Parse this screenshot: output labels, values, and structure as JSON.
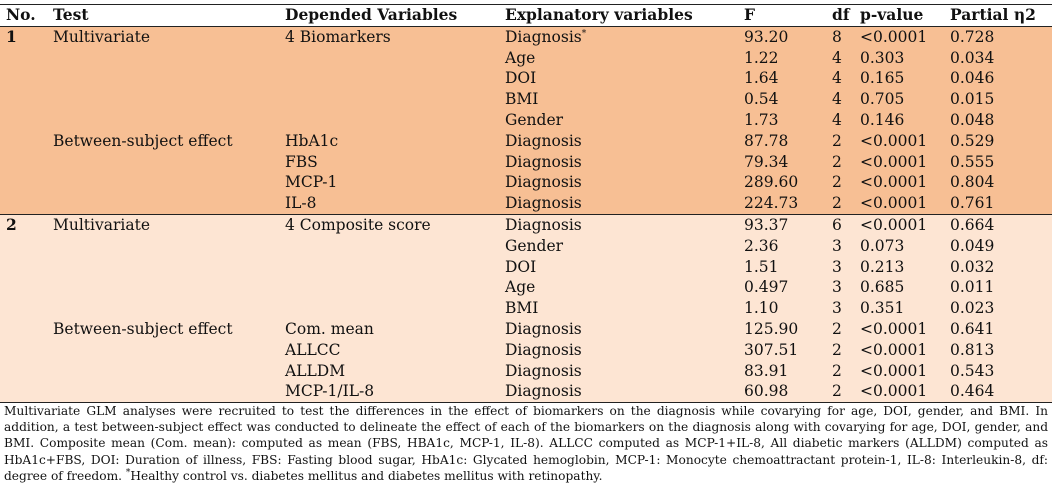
{
  "columns": [
    "No.",
    "Test",
    "Depended Variables",
    "Explanatory variables",
    "F",
    "df",
    "p-value",
    "Partial η2"
  ],
  "groups": [
    {
      "no": "1",
      "rows": [
        {
          "test": "Multivariate",
          "dep": "4 Biomarkers",
          "expl": "Diagnosis",
          "sup": "*",
          "F": "93.20",
          "df": "8",
          "p": "<0.0001",
          "eta": "0.728"
        },
        {
          "test": "",
          "dep": "",
          "expl": "Age",
          "F": "1.22",
          "df": "4",
          "p": "0.303",
          "eta": "0.034"
        },
        {
          "test": "",
          "dep": "",
          "expl": "DOI",
          "F": "1.64",
          "df": "4",
          "p": "0.165",
          "eta": "0.046"
        },
        {
          "test": "",
          "dep": "",
          "expl": "BMI",
          "F": "0.54",
          "df": "4",
          "p": "0.705",
          "eta": "0.015"
        },
        {
          "test": "",
          "dep": "",
          "expl": "Gender",
          "F": "1.73",
          "df": "4",
          "p": "0.146",
          "eta": "0.048"
        },
        {
          "test": "Between-subject effect",
          "dep": "HbA1c",
          "expl": "Diagnosis",
          "F": "87.78",
          "df": "2",
          "p": "<0.0001",
          "eta": "0.529"
        },
        {
          "test": "",
          "dep": "FBS",
          "expl": "Diagnosis",
          "F": "79.34",
          "df": "2",
          "p": "<0.0001",
          "eta": "0.555"
        },
        {
          "test": "",
          "dep": "MCP-1",
          "expl": "Diagnosis",
          "F": "289.60",
          "df": "2",
          "p": "<0.0001",
          "eta": "0.804"
        },
        {
          "test": "",
          "dep": "IL-8",
          "expl": "Diagnosis",
          "F": "224.73",
          "df": "2",
          "p": "<0.0001",
          "eta": "0.761"
        }
      ]
    },
    {
      "no": "2",
      "rows": [
        {
          "test": "Multivariate",
          "dep": "4 Composite score",
          "expl": "Diagnosis",
          "F": "93.37",
          "df": "6",
          "p": "<0.0001",
          "eta": "0.664"
        },
        {
          "test": "",
          "dep": "",
          "expl": "Gender",
          "F": "2.36",
          "df": "3",
          "p": "0.073",
          "eta": "0.049"
        },
        {
          "test": "",
          "dep": "",
          "expl": "DOI",
          "F": "1.51",
          "df": "3",
          "p": "0.213",
          "eta": "0.032"
        },
        {
          "test": "",
          "dep": "",
          "expl": "Age",
          "F": "0.497",
          "df": "3",
          "p": "0.685",
          "eta": "0.011"
        },
        {
          "test": "",
          "dep": "",
          "expl": "BMI",
          "F": "1.10",
          "df": "3",
          "p": "0.351",
          "eta": "0.023"
        },
        {
          "test": "Between-subject effect",
          "dep": "Com. mean",
          "expl": "Diagnosis",
          "F": "125.90",
          "df": "2",
          "p": "<0.0001",
          "eta": "0.641"
        },
        {
          "test": "",
          "dep": "ALLCC",
          "expl": "Diagnosis",
          "F": "307.51",
          "df": "2",
          "p": "<0.0001",
          "eta": "0.813"
        },
        {
          "test": "",
          "dep": "ALLDM",
          "expl": "Diagnosis",
          "F": "83.91",
          "df": "2",
          "p": "<0.0001",
          "eta": "0.543"
        },
        {
          "test": "",
          "dep": "MCP-1/IL-8",
          "expl": "Diagnosis",
          "F": "60.98",
          "df": "2",
          "p": "<0.0001",
          "eta": "0.464"
        }
      ]
    }
  ],
  "footnote": {
    "main": "Multivariate GLM analyses were recruited to test the differences in the effect of biomarkers on the diagnosis while covarying for age, DOI, gender, and BMI. In addition, a test between-subject effect was conducted to delineate the effect of each of the biomarkers on the diagnosis along with covarying for age, DOI, gender, and BMI. Composite mean (Com. mean): computed as mean (FBS, HBA1c, MCP-1, IL-8). ALLCC computed as MCP-1+IL-8, All diabetic markers (ALLDM) computed as HbA1c+FBS, DOI: Duration of illness, FBS: Fasting blood sugar, HbA1c: Glycated hemoglobin, MCP-1: Monocyte chemoattractant protein-1, IL-8: Interleukin-8, df: degree of freedom. ",
    "star": "*",
    "tail": "Healthy control vs. diabetes mellitus and diabetes mellitus with retinopathy."
  },
  "colors": {
    "group1_bg": "#f7bf94",
    "group2_bg": "#fde5d3"
  }
}
